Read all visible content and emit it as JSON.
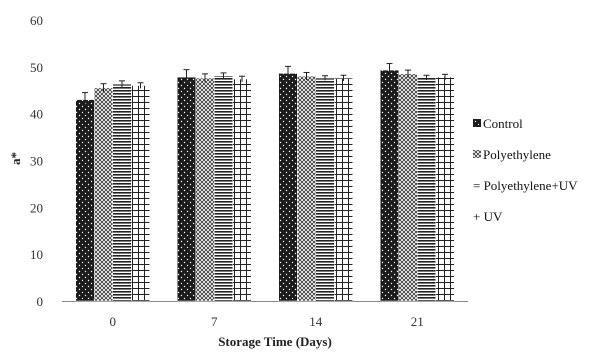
{
  "chart_data": {
    "type": "bar",
    "title": "",
    "xlabel": "Storage Time (Days)",
    "ylabel": "a*",
    "categories": [
      "0",
      "7",
      "14",
      "21"
    ],
    "ylim": [
      0,
      60
    ],
    "yticks": [
      "0",
      "10",
      "20",
      "30",
      "40",
      "50",
      "60"
    ],
    "grid": false,
    "legend_position": "right",
    "series": [
      {
        "name": "Control",
        "pattern": "dark-dots",
        "values": [
          43.0,
          47.8,
          48.6,
          49.3
        ],
        "errors": [
          1.5,
          1.6,
          1.5,
          1.4
        ]
      },
      {
        "name": "Polyethylene",
        "pattern": "crosshatch",
        "values": [
          45.5,
          47.6,
          48.0,
          48.5
        ],
        "errors": [
          0.9,
          0.9,
          0.8,
          0.8
        ]
      },
      {
        "name": "Polyethylene+UV",
        "pattern": "horizontal-lines",
        "values": [
          46.3,
          48.1,
          47.6,
          47.7
        ],
        "errors": [
          0.7,
          0.6,
          0.5,
          0.5
        ]
      },
      {
        "name": "UV",
        "pattern": "grid",
        "values": [
          46.0,
          47.4,
          47.6,
          47.8
        ],
        "errors": [
          0.6,
          0.6,
          0.6,
          0.6
        ]
      }
    ],
    "legend_labels": [
      "Control",
      "Polyethylene",
      "= Polyethylene+UV",
      "+ UV"
    ],
    "colors": {
      "dark": "#1a1a1a",
      "line": "#222222",
      "background": "#ffffff",
      "axis": "#888888"
    }
  }
}
